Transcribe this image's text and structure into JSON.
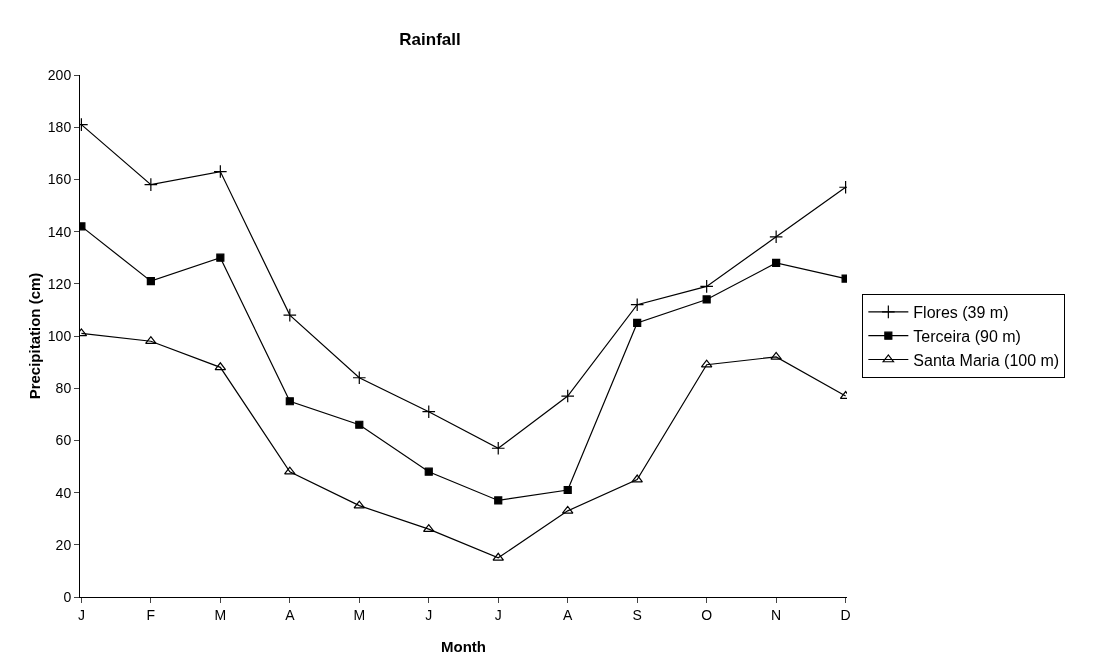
{
  "chart_data": {
    "type": "line",
    "title": "Rainfall",
    "xlabel": "Month",
    "ylabel": "Precipitation (cm)",
    "categories": [
      "J",
      "F",
      "M",
      "A",
      "M",
      "J",
      "J",
      "A",
      "S",
      "O",
      "N",
      "D"
    ],
    "series": [
      {
        "name": "Flores (39 m)",
        "color": "#000000",
        "marker": "cross",
        "values": [
          181,
          158,
          163,
          108,
          84,
          71,
          57,
          77,
          112,
          119,
          138,
          157
        ]
      },
      {
        "name": "Terceira (90 m)",
        "color": "#000000",
        "marker": "square",
        "values": [
          142,
          121,
          130,
          75,
          66,
          48,
          37,
          41,
          105,
          114,
          128,
          122
        ]
      },
      {
        "name": "Santa Maria (100 m)",
        "color": "#000000",
        "marker": "triangle",
        "values": [
          101,
          98,
          88,
          48,
          35,
          26,
          15,
          33,
          45,
          89,
          92,
          77
        ]
      }
    ],
    "ylim": [
      0,
      200
    ],
    "yticks": [
      0,
      20,
      40,
      60,
      80,
      100,
      120,
      140,
      160,
      180,
      200
    ],
    "grid": false,
    "legend": "right",
    "line_style": "solid"
  }
}
